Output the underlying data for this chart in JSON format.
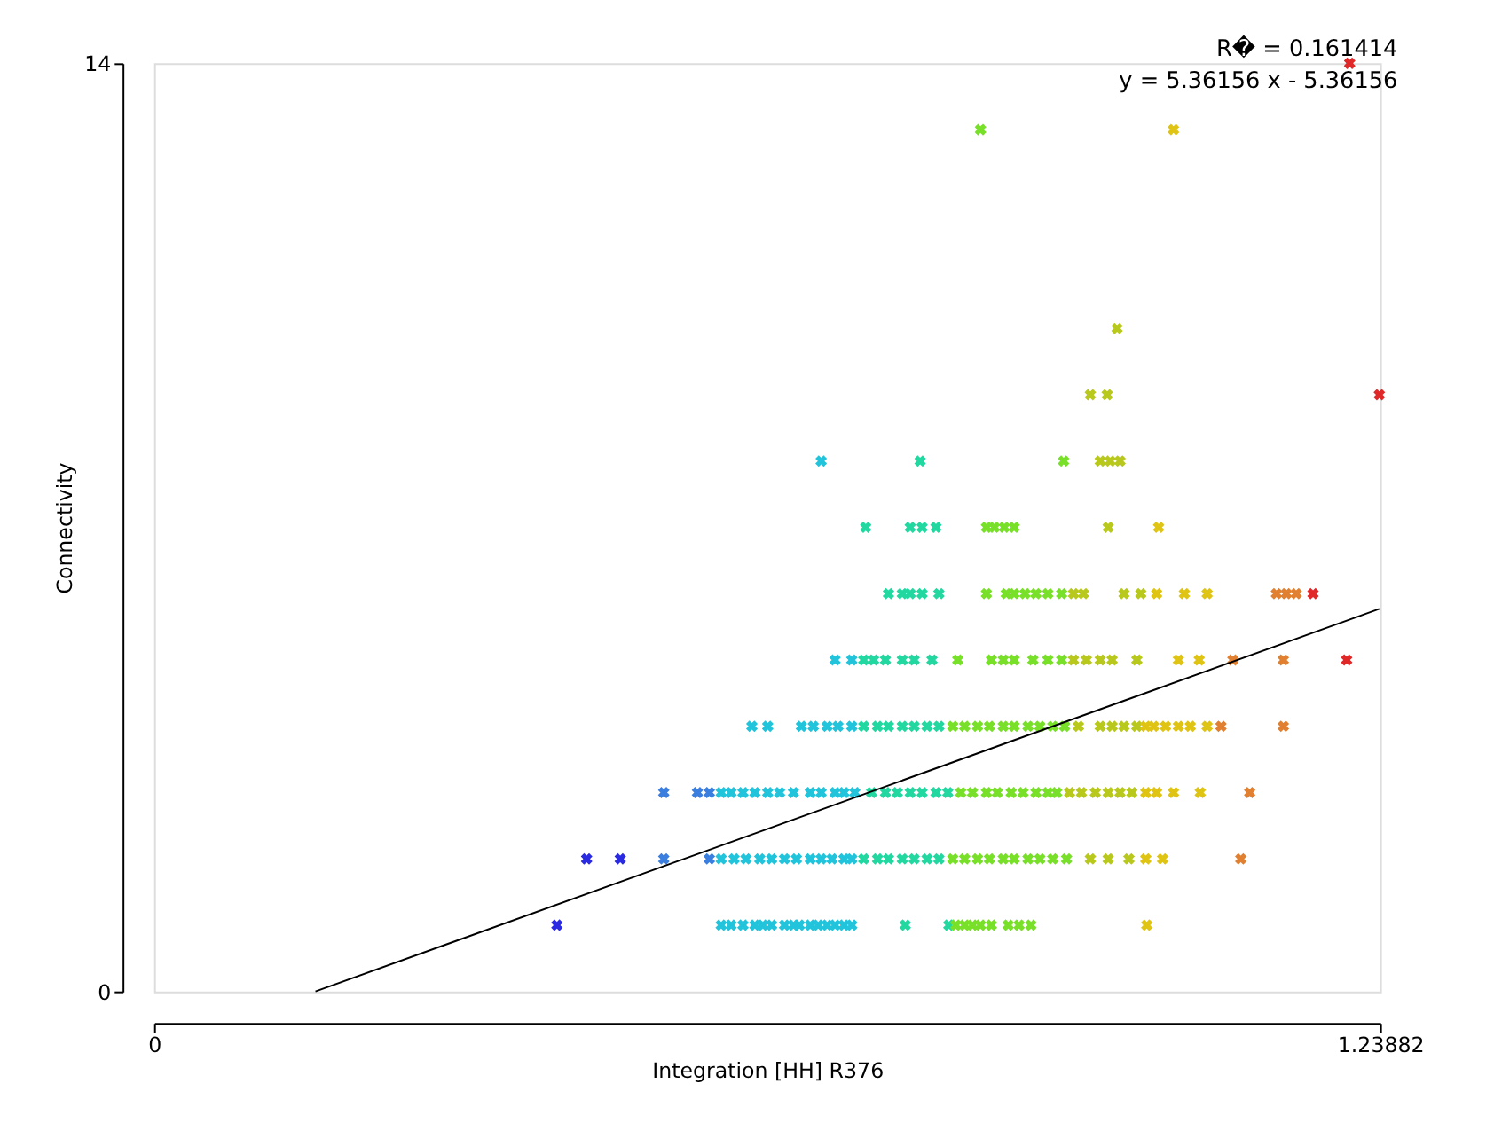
{
  "chart_data": {
    "type": "scatter",
    "xlabel": "Integration [HH] R376",
    "ylabel": "Connectivity",
    "xlim": [
      0,
      1.23882
    ],
    "xticks": [
      0,
      1.23882
    ],
    "ylim": [
      0,
      14
    ],
    "yticks": [
      0,
      14
    ],
    "grid": false,
    "legend": false,
    "marker": "cross",
    "annotations": [
      "R� = 0.161414",
      "y = 5.36156 x - 5.36156"
    ],
    "series": [
      {
        "color": "#2a2ae0",
        "x": [
          0.407,
          0.437,
          0.471
        ],
        "values": [
          1,
          2,
          2
        ]
      },
      {
        "color": "#3a7ee0",
        "x": [
          0.515,
          0.561,
          0.515,
          0.549,
          0.561
        ],
        "values": [
          2,
          2,
          3,
          3,
          3
        ]
      },
      {
        "color": "#22c4dc",
        "x": [
          0.573,
          0.583,
          0.595,
          0.607,
          0.615,
          0.624,
          0.637,
          0.646,
          0.652,
          0.663,
          0.671,
          0.68,
          0.688,
          0.697,
          0.705,
          0.573,
          0.586,
          0.598,
          0.612,
          0.624,
          0.637,
          0.649,
          0.663,
          0.674,
          0.685,
          0.697,
          0.705,
          0.573,
          0.583,
          0.595,
          0.607,
          0.62,
          0.632,
          0.646,
          0.663,
          0.674,
          0.688,
          0.697,
          0.708,
          0.604,
          0.62,
          0.654,
          0.666,
          0.68,
          0.691,
          0.705,
          0.688,
          0.705,
          0.674
        ],
        "values": [
          1,
          1,
          1,
          1,
          1,
          1,
          1,
          1,
          1,
          1,
          1,
          1,
          1,
          1,
          1,
          2,
          2,
          2,
          2,
          2,
          2,
          2,
          2,
          2,
          2,
          2,
          2,
          3,
          3,
          3,
          3,
          3,
          3,
          3,
          3,
          3,
          3,
          3,
          3,
          4,
          4,
          4,
          4,
          4,
          4,
          4,
          5,
          5,
          8
        ]
      },
      {
        "color": "#22d8a0",
        "x": [
          0.759,
          0.803,
          0.717,
          0.731,
          0.742,
          0.756,
          0.768,
          0.781,
          0.793,
          0.725,
          0.739,
          0.751,
          0.764,
          0.776,
          0.79,
          0.802,
          0.717,
          0.731,
          0.742,
          0.756,
          0.768,
          0.781,
          0.793,
          0.717,
          0.727,
          0.739,
          0.756,
          0.768,
          0.786,
          0.742,
          0.756,
          0.764,
          0.776,
          0.793,
          0.719,
          0.764,
          0.776,
          0.79,
          0.774
        ],
        "values": [
          1,
          1,
          2,
          2,
          2,
          2,
          2,
          2,
          2,
          3,
          3,
          3,
          3,
          3,
          3,
          3,
          4,
          4,
          4,
          4,
          4,
          4,
          4,
          5,
          5,
          5,
          5,
          5,
          5,
          6,
          6,
          6,
          6,
          6,
          7,
          7,
          7,
          7,
          8
        ]
      },
      {
        "color": "#78e028",
        "x": [
          0.81,
          0.819,
          0.827,
          0.835,
          0.846,
          0.863,
          0.874,
          0.886,
          0.807,
          0.819,
          0.832,
          0.844,
          0.858,
          0.869,
          0.883,
          0.895,
          0.908,
          0.922,
          0.815,
          0.827,
          0.841,
          0.852,
          0.866,
          0.878,
          0.891,
          0.903,
          0.912,
          0.807,
          0.819,
          0.832,
          0.844,
          0.858,
          0.869,
          0.883,
          0.895,
          0.908,
          0.92,
          0.812,
          0.846,
          0.858,
          0.869,
          0.888,
          0.903,
          0.917,
          0.841,
          0.861,
          0.869,
          0.88,
          0.891,
          0.903,
          0.917,
          0.841,
          0.849,
          0.859,
          0.869,
          0.919,
          0.835
        ],
        "values": [
          1,
          1,
          1,
          1,
          1,
          1,
          1,
          1,
          2,
          2,
          2,
          2,
          2,
          2,
          2,
          2,
          2,
          2,
          3,
          3,
          3,
          3,
          3,
          3,
          3,
          3,
          3,
          4,
          4,
          4,
          4,
          4,
          4,
          4,
          4,
          4,
          4,
          5,
          5,
          5,
          5,
          5,
          5,
          5,
          6,
          6,
          6,
          6,
          6,
          6,
          6,
          7,
          7,
          7,
          7,
          8,
          13
        ]
      },
      {
        "color": "#b8c81c",
        "x": [
          0.946,
          0.964,
          0.985,
          0.925,
          0.937,
          0.951,
          0.964,
          0.976,
          0.988,
          0.934,
          0.956,
          0.968,
          0.98,
          0.993,
          0.929,
          0.942,
          0.956,
          0.968,
          0.993,
          0.929,
          0.939,
          0.98,
          0.997,
          0.964,
          0.956,
          0.966,
          0.976,
          0.946,
          0.963,
          0.973
        ],
        "values": [
          2,
          2,
          2,
          3,
          3,
          3,
          3,
          3,
          3,
          4,
          4,
          4,
          4,
          4,
          5,
          5,
          5,
          5,
          5,
          6,
          6,
          6,
          6,
          7,
          8,
          8,
          8,
          9,
          9,
          10
        ]
      },
      {
        "color": "#e0c414",
        "x": [
          1.003,
          1.002,
          1.019,
          1.002,
          1.013,
          1.03,
          1.057,
          1.002,
          1.01,
          1.022,
          1.035,
          1.047,
          1.064,
          1.035,
          1.056,
          1.013,
          1.041,
          1.064,
          1.015,
          1.03
        ],
        "values": [
          1,
          2,
          2,
          3,
          3,
          3,
          3,
          4,
          4,
          4,
          4,
          4,
          4,
          5,
          5,
          6,
          6,
          6,
          7,
          13
        ]
      },
      {
        "color": "#e08030",
        "x": [
          1.098,
          1.107,
          1.078,
          1.141,
          1.09,
          1.141,
          1.134,
          1.144,
          1.154
        ],
        "values": [
          2,
          3,
          4,
          4,
          5,
          5,
          6,
          6,
          6
        ]
      },
      {
        "color": "#e02828",
        "x": [
          1.205,
          1.171,
          1.238,
          1.208
        ],
        "values": [
          5,
          6,
          9,
          14
        ]
      },
      {
        "type": "line",
        "marker": "none",
        "color": "#000000",
        "x": [
          0.163,
          1.238
        ],
        "values": [
          0,
          5.77
        ]
      }
    ]
  }
}
